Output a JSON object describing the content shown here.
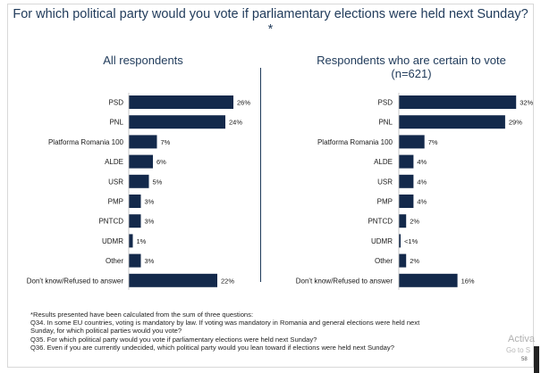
{
  "title": "For which political party would you vote if parliamentary elections were held next Sunday?*",
  "chart_data": [
    {
      "type": "bar",
      "orientation": "horizontal",
      "title": "All respondents",
      "categories": [
        "PSD",
        "PNL",
        "Platforma Romania 100",
        "ALDE",
        "USR",
        "PMP",
        "PNTCD",
        "UDMR",
        "Other",
        "Don't know/Refused to answer"
      ],
      "values": [
        26,
        24,
        7,
        6,
        5,
        3,
        3,
        1,
        3,
        22
      ],
      "labels": [
        "26%",
        "24%",
        "7%",
        "6%",
        "5%",
        "3%",
        "3%",
        "1%",
        "3%",
        "22%"
      ],
      "xlim": [
        0,
        32
      ],
      "color": "#13294b"
    },
    {
      "type": "bar",
      "orientation": "horizontal",
      "title": "Respondents who are certain to vote\n(n=621)",
      "categories": [
        "PSD",
        "PNL",
        "Platforma Romania 100",
        "ALDE",
        "USR",
        "PMP",
        "PNTCD",
        "UDMR",
        "Other",
        "Don't know/Refused to answer"
      ],
      "values": [
        32,
        29,
        7,
        4,
        4,
        4,
        2,
        0.5,
        2,
        16
      ],
      "labels": [
        "32%",
        "29%",
        "7%",
        "4%",
        "4%",
        "4%",
        "2%",
        "<1%",
        "2%",
        "16%"
      ],
      "xlim": [
        0,
        32
      ],
      "color": "#13294b"
    }
  ],
  "notes": [
    "*Results presented have been calculated from the sum of three questions:",
    "Q34. In some EU countries, voting is mandatory by law. If voting was mandatory in Romania and general elections were held next",
    "Sunday, for which political parties would you vote?",
    "Q35. For which political party would you vote if parliamentary elections were held next Sunday?",
    "Q36. Even if you are currently undecided, which political party would you lean toward if elections were held next Sunday?"
  ],
  "watermark": {
    "line1": "Activa",
    "line2": "Go to S"
  },
  "page_number": "58"
}
